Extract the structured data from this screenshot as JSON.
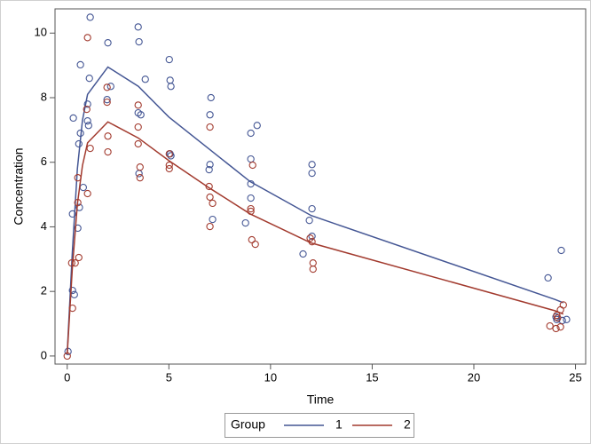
{
  "chart_data": {
    "type": "scatter",
    "x_label": "Time",
    "y_label": "Concentration",
    "xlim": [
      -0.6,
      25.5
    ],
    "ylim": [
      -0.25,
      10.75
    ],
    "xticks": [
      0,
      5,
      10,
      15,
      20,
      25
    ],
    "yticks": [
      0,
      2,
      4,
      6,
      8,
      10
    ],
    "legend_title": "Group",
    "legend_position": "bottom",
    "series": [
      {
        "name": "1",
        "color": "#445694",
        "x": [
          0.04,
          0.26,
          0.26,
          0.3,
          0.35,
          0.52,
          0.57,
          0.65,
          0.65,
          0.79,
          0.6,
          1.0,
          1.0,
          1.05,
          1.09,
          1.13,
          2.0,
          1.96,
          2.14,
          3.49,
          3.53,
          3.49,
          3.62,
          3.84,
          3.53,
          5.02,
          5.06,
          5.1,
          5.06,
          5.1,
          7.07,
          7.02,
          7.02,
          6.98,
          7.15,
          9.03,
          9.34,
          9.03,
          9.03,
          9.03,
          8.77,
          12.04,
          12.04,
          12.04,
          11.91,
          12.04,
          11.6,
          23.65,
          24.3,
          24.08,
          24.35,
          24.56,
          24.04
        ],
        "values": [
          0.14,
          2.03,
          4.4,
          7.37,
          1.9,
          3.96,
          6.57,
          6.9,
          9.02,
          5.22,
          4.6,
          7.8,
          7.28,
          7.14,
          8.6,
          10.49,
          9.7,
          7.94,
          8.35,
          10.19,
          9.73,
          7.53,
          7.47,
          8.57,
          5.65,
          9.18,
          8.54,
          8.35,
          6.26,
          6.2,
          8.0,
          7.47,
          5.93,
          5.77,
          4.23,
          6.9,
          7.14,
          6.1,
          5.33,
          4.89,
          4.12,
          5.93,
          5.66,
          4.56,
          4.2,
          3.71,
          3.16,
          2.42,
          3.27,
          1.13,
          1.1,
          1.13,
          1.21
        ],
        "line": {
          "x": [
            0,
            0.25,
            0.5,
            0.75,
            1,
            2,
            3.5,
            5,
            7,
            9,
            12,
            24,
            24.4
          ],
          "values": [
            0.1,
            3.2,
            5.8,
            7.3,
            8.1,
            8.95,
            8.35,
            7.4,
            6.4,
            5.4,
            4.35,
            1.75,
            1.65
          ]
        }
      },
      {
        "name": "2",
        "color": "#a23a2e",
        "x": [
          0.0,
          0.22,
          0.26,
          0.39,
          0.57,
          0.52,
          0.52,
          1.0,
          0.96,
          1.0,
          1.13,
          1.96,
          1.96,
          2.0,
          2.0,
          3.49,
          3.49,
          3.49,
          3.58,
          3.58,
          5.02,
          5.02,
          5.02,
          7.02,
          6.98,
          7.02,
          7.15,
          7.02,
          9.12,
          9.03,
          9.03,
          9.08,
          9.25,
          11.95,
          12.04,
          12.09,
          12.09,
          24.4,
          24.26,
          24.08,
          24.12,
          23.74,
          24.04,
          24.26
        ],
        "values": [
          0.0,
          2.88,
          1.48,
          2.88,
          3.05,
          4.75,
          5.52,
          9.86,
          7.64,
          5.03,
          6.43,
          8.32,
          7.86,
          6.81,
          6.32,
          7.77,
          7.09,
          6.57,
          5.85,
          5.52,
          6.26,
          5.91,
          5.8,
          7.09,
          5.25,
          4.92,
          4.73,
          4.01,
          5.91,
          4.56,
          4.48,
          3.6,
          3.46,
          3.65,
          3.54,
          2.88,
          2.69,
          1.58,
          1.43,
          1.26,
          1.18,
          0.93,
          0.85,
          0.9
        ],
        "line": {
          "x": [
            0,
            0.25,
            0.5,
            0.75,
            1,
            2,
            3.5,
            5,
            7,
            9,
            12,
            24,
            24.4
          ],
          "values": [
            0.05,
            2.7,
            4.7,
            5.9,
            6.6,
            7.25,
            6.75,
            6.05,
            5.2,
            4.4,
            3.5,
            1.4,
            1.3
          ]
        }
      }
    ]
  }
}
